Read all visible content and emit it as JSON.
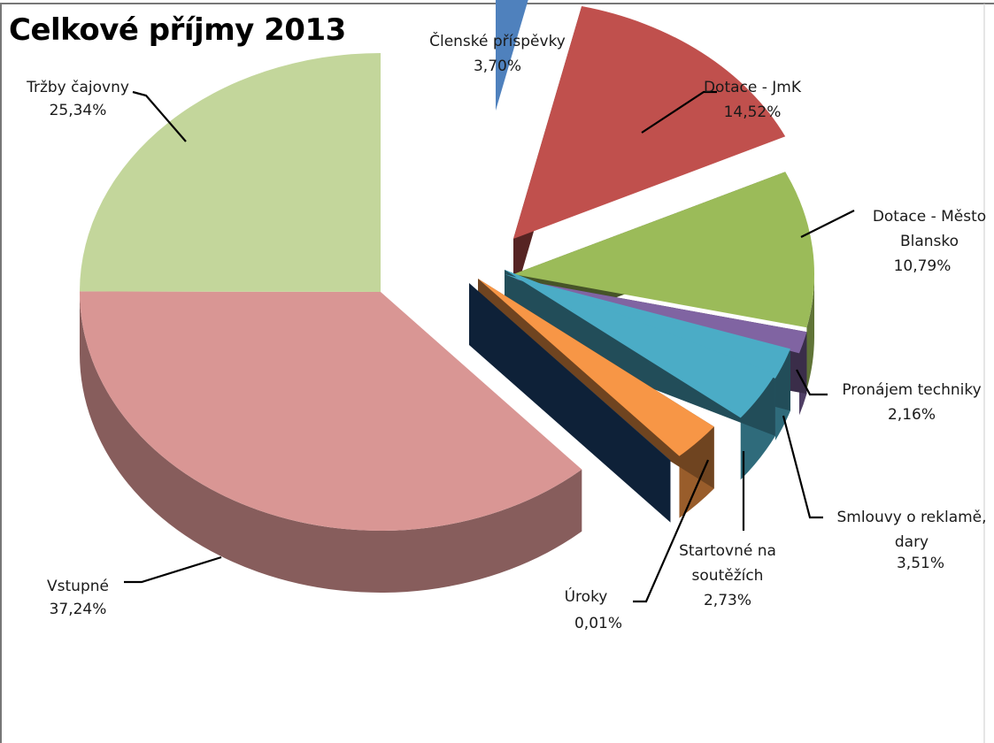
{
  "chart_data": {
    "type": "pie",
    "title": "Celkové příjmy 2013",
    "slices": [
      {
        "label": [
          "Členské příspěvky"
        ],
        "percent_label": "3,70%",
        "value": 3.7,
        "color": "#4F81BD"
      },
      {
        "label": [
          "Dotace - JmK"
        ],
        "percent_label": "14,52%",
        "value": 14.52,
        "color": "#C0504D"
      },
      {
        "label": [
          "Dotace - Město",
          "Blansko"
        ],
        "percent_label": "10,79%",
        "value": 10.79,
        "color": "#9BBB59"
      },
      {
        "label": [],
        "percent_label": "",
        "value": 1.5,
        "color": "#8064A2"
      },
      {
        "label": [
          "Pronájem techniky"
        ],
        "percent_label": "2,16%",
        "value": 2.16,
        "color": "#4BACC6"
      },
      {
        "label": [
          "Smlouvy o reklamě,",
          "dary"
        ],
        "percent_label": "3,51%",
        "value": 3.51,
        "color": "#4BACC6"
      },
      {
        "label": [
          "Startovné na",
          "soutěžích"
        ],
        "percent_label": "2,73%",
        "value": 2.73,
        "color": "#F79646"
      },
      {
        "label": [
          "Úroky"
        ],
        "percent_label": "0,01%",
        "value": 0.01,
        "color": "#1F497D"
      },
      {
        "label": [
          "Vstupné"
        ],
        "percent_label": "37,24%",
        "value": 37.24,
        "color": "#D99694"
      },
      {
        "label": [
          "Tržby čajovny"
        ],
        "percent_label": "25,34%",
        "value": 25.34,
        "color": "#C3D69B"
      }
    ]
  }
}
